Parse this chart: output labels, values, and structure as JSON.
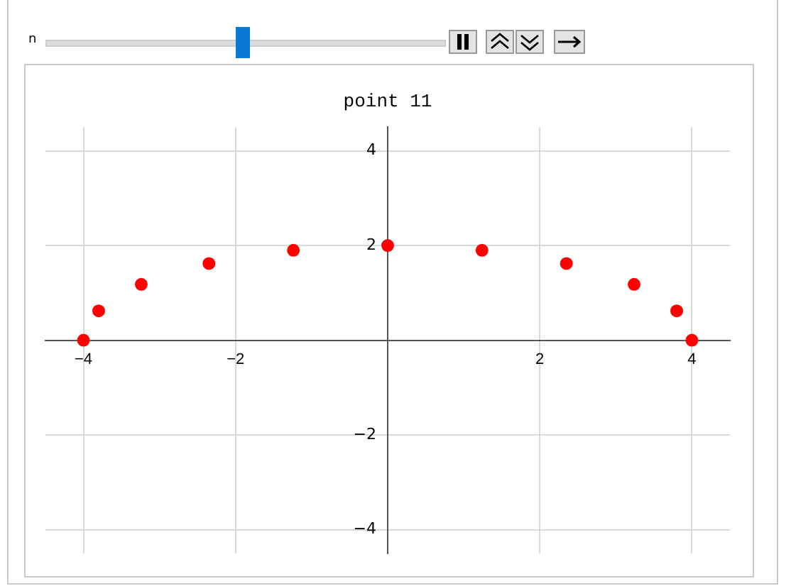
{
  "chart_data": {
    "type": "scatter",
    "title": "point 11",
    "annotations": [
      "n"
    ],
    "x": [
      -4,
      -3.8,
      -3.24,
      -2.35,
      -1.24,
      0,
      1.24,
      2.35,
      3.24,
      3.8,
      4
    ],
    "series": [
      {
        "color": "#ff0000",
        "values": [
          0,
          0.62,
          1.18,
          1.62,
          1.9,
          2,
          1.9,
          1.62,
          1.18,
          0.62,
          0
        ]
      }
    ],
    "xlim": [
      -4.5,
      4.5
    ],
    "ylim": [
      -4.5,
      4.5
    ],
    "xticks": [
      -4,
      -2,
      2,
      4
    ],
    "yticks": [
      -4,
      -2,
      2,
      4
    ],
    "grid": true,
    "legend": false,
    "marker": "circle"
  }
}
